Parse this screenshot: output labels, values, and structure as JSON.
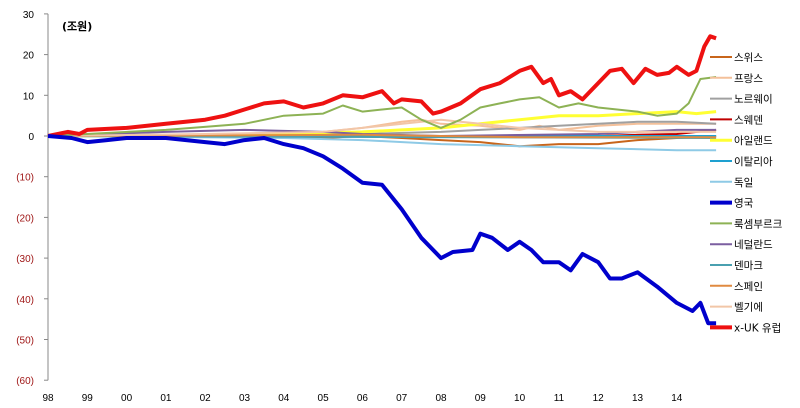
{
  "chart_data": {
    "type": "line",
    "unit_label": "(조원)",
    "ylim": [
      -60,
      30
    ],
    "yticks": [
      {
        "v": 30,
        "label": "30"
      },
      {
        "v": 20,
        "label": "20"
      },
      {
        "v": 10,
        "label": "10"
      },
      {
        "v": 0,
        "label": "0"
      },
      {
        "v": -10,
        "label": "(10)"
      },
      {
        "v": -20,
        "label": "(20)"
      },
      {
        "v": -30,
        "label": "(30)"
      },
      {
        "v": -40,
        "label": "(40)"
      },
      {
        "v": -50,
        "label": "(50)"
      },
      {
        "v": -60,
        "label": "(60)"
      }
    ],
    "xticks": [
      "98",
      "99",
      "00",
      "01",
      "02",
      "03",
      "04",
      "05",
      "06",
      "07",
      "08",
      "09",
      "10",
      "11",
      "12",
      "13",
      "14"
    ],
    "xlim": [
      1998,
      2015
    ],
    "negative_label_color": "#a01818",
    "legend_position": "right",
    "series": [
      {
        "name": "스위스",
        "color": "#c8651b",
        "width": 2,
        "points": [
          [
            1998,
            0
          ],
          [
            2004,
            0
          ],
          [
            2005,
            -0.5
          ],
          [
            2006,
            0
          ],
          [
            2007,
            -0.5
          ],
          [
            2008,
            -1
          ],
          [
            2009,
            -1.5
          ],
          [
            2010,
            -2.5
          ],
          [
            2011,
            -2
          ],
          [
            2012,
            -2
          ],
          [
            2013,
            -1
          ],
          [
            2014,
            -0.5
          ],
          [
            2015,
            0
          ]
        ]
      },
      {
        "name": "프랑스",
        "color": "#f4c09a",
        "width": 2,
        "points": [
          [
            1998,
            0
          ],
          [
            2003,
            0.5
          ],
          [
            2005,
            1
          ],
          [
            2006,
            2
          ],
          [
            2007,
            3.5
          ],
          [
            2007.5,
            4
          ],
          [
            2008,
            3
          ],
          [
            2009,
            2.5
          ],
          [
            2010,
            1.5
          ],
          [
            2010.5,
            2.5
          ],
          [
            2011,
            1.5
          ],
          [
            2012,
            2.5
          ],
          [
            2013,
            3
          ],
          [
            2014,
            3
          ],
          [
            2015,
            3
          ]
        ]
      },
      {
        "name": "노르웨이",
        "color": "#a0a0a0",
        "width": 2,
        "points": [
          [
            1998,
            0
          ],
          [
            2004,
            0
          ],
          [
            2006,
            0.5
          ],
          [
            2008,
            1
          ],
          [
            2009,
            1.5
          ],
          [
            2010,
            2
          ],
          [
            2011,
            2.5
          ],
          [
            2012,
            3
          ],
          [
            2013,
            3.5
          ],
          [
            2014,
            3.5
          ],
          [
            2015,
            3
          ]
        ]
      },
      {
        "name": "스웨덴",
        "color": "#c00000",
        "width": 2,
        "points": [
          [
            1998,
            0
          ],
          [
            2012,
            0
          ],
          [
            2013,
            0.3
          ],
          [
            2014,
            0.5
          ],
          [
            2015,
            1.5
          ]
        ]
      },
      {
        "name": "아일랜드",
        "color": "#ffff33",
        "width": 3,
        "points": [
          [
            1998,
            0
          ],
          [
            2002,
            0
          ],
          [
            2004,
            0.5
          ],
          [
            2006,
            1
          ],
          [
            2007,
            1.5
          ],
          [
            2008,
            2
          ],
          [
            2009,
            3
          ],
          [
            2010,
            4
          ],
          [
            2011,
            5
          ],
          [
            2012,
            5
          ],
          [
            2013,
            5.5
          ],
          [
            2014,
            6
          ],
          [
            2014.5,
            5.5
          ],
          [
            2015,
            6
          ]
        ]
      },
      {
        "name": "이탈리아",
        "color": "#1ea0d0",
        "width": 2,
        "points": [
          [
            1998,
            0
          ],
          [
            2015,
            0
          ]
        ]
      },
      {
        "name": "독일",
        "color": "#8ecae6",
        "width": 2,
        "points": [
          [
            1998,
            0
          ],
          [
            2004,
            -0.5
          ],
          [
            2006,
            -1
          ],
          [
            2008,
            -2
          ],
          [
            2010,
            -2.5
          ],
          [
            2012,
            -3
          ],
          [
            2014,
            -3.5
          ],
          [
            2015,
            -3.5
          ]
        ]
      },
      {
        "name": "네덜란드",
        "color": "#7b5fa0",
        "width": 2,
        "points": [
          [
            1998,
            0
          ],
          [
            2001,
            1
          ],
          [
            2003,
            1.5
          ],
          [
            2005,
            1
          ],
          [
            2006,
            0.5
          ],
          [
            2008,
            0
          ],
          [
            2012,
            0.5
          ],
          [
            2013,
            1
          ],
          [
            2014,
            1.5
          ],
          [
            2015,
            1.5
          ]
        ]
      },
      {
        "name": "덴마크",
        "color": "#4aa0b0",
        "width": 2,
        "points": [
          [
            1998,
            0
          ],
          [
            2015,
            -0.5
          ]
        ]
      },
      {
        "name": "스페인",
        "color": "#e08a40",
        "width": 2,
        "points": [
          [
            1998,
            0
          ],
          [
            2006,
            0.3
          ],
          [
            2010,
            -0.3
          ],
          [
            2015,
            -0.3
          ]
        ]
      },
      {
        "name": "벨기에",
        "color": "#f2c6a8",
        "width": 2,
        "points": [
          [
            1998,
            0
          ],
          [
            2002,
            0.5
          ],
          [
            2005,
            1
          ],
          [
            2006,
            2
          ],
          [
            2008,
            4
          ],
          [
            2009,
            3
          ],
          [
            2010,
            2
          ],
          [
            2012,
            1
          ],
          [
            2014,
            1
          ],
          [
            2015,
            1
          ]
        ]
      },
      {
        "name": "룩셈부르크",
        "color": "#8db255",
        "width": 2,
        "points": [
          [
            1998,
            0
          ],
          [
            2001,
            1.5
          ],
          [
            2003,
            3
          ],
          [
            2004,
            5
          ],
          [
            2005,
            5.5
          ],
          [
            2005.5,
            7.5
          ],
          [
            2006,
            6
          ],
          [
            2007,
            7
          ],
          [
            2007.5,
            4
          ],
          [
            2008,
            2
          ],
          [
            2008.5,
            4
          ],
          [
            2009,
            7
          ],
          [
            2009.5,
            8
          ],
          [
            2010,
            9
          ],
          [
            2010.5,
            9.5
          ],
          [
            2011,
            7
          ],
          [
            2011.5,
            8
          ],
          [
            2012,
            7
          ],
          [
            2013,
            6
          ],
          [
            2013.5,
            5
          ],
          [
            2014,
            5.5
          ],
          [
            2014.3,
            8
          ],
          [
            2014.6,
            14
          ],
          [
            2015,
            14.5
          ]
        ]
      },
      {
        "name": "x-UK 유럽",
        "color": "#ee1111",
        "width": 4,
        "points": [
          [
            1998,
            0
          ],
          [
            1998.5,
            1
          ],
          [
            1998.8,
            0.5
          ],
          [
            1999,
            1.5
          ],
          [
            2000,
            2
          ],
          [
            2001,
            3
          ],
          [
            2002,
            4
          ],
          [
            2002.5,
            5
          ],
          [
            2003,
            6.5
          ],
          [
            2003.5,
            8
          ],
          [
            2004,
            8.5
          ],
          [
            2004.5,
            7
          ],
          [
            2005,
            8
          ],
          [
            2005.5,
            10
          ],
          [
            2006,
            9.5
          ],
          [
            2006.5,
            11
          ],
          [
            2006.8,
            8
          ],
          [
            2007,
            9
          ],
          [
            2007.5,
            8.5
          ],
          [
            2007.8,
            5.5
          ],
          [
            2008,
            6
          ],
          [
            2008.5,
            8
          ],
          [
            2009,
            11.5
          ],
          [
            2009.5,
            13
          ],
          [
            2010,
            16
          ],
          [
            2010.3,
            17
          ],
          [
            2010.6,
            13
          ],
          [
            2010.8,
            14
          ],
          [
            2011,
            10
          ],
          [
            2011.3,
            11
          ],
          [
            2011.6,
            9
          ],
          [
            2012,
            13
          ],
          [
            2012.3,
            16
          ],
          [
            2012.6,
            16.5
          ],
          [
            2012.9,
            13
          ],
          [
            2013.2,
            16.5
          ],
          [
            2013.5,
            15
          ],
          [
            2013.8,
            15.5
          ],
          [
            2014,
            17
          ],
          [
            2014.3,
            15
          ],
          [
            2014.5,
            16
          ],
          [
            2014.7,
            22
          ],
          [
            2014.85,
            24.5
          ],
          [
            2015,
            24
          ]
        ]
      },
      {
        "name": "영국",
        "color": "#0000cc",
        "width": 4,
        "points": [
          [
            1998,
            0
          ],
          [
            1998.6,
            -0.5
          ],
          [
            1999,
            -1.5
          ],
          [
            1999.5,
            -1
          ],
          [
            2000,
            -0.5
          ],
          [
            2001,
            -0.5
          ],
          [
            2002,
            -1.5
          ],
          [
            2002.5,
            -2
          ],
          [
            2003,
            -1
          ],
          [
            2003.5,
            -0.5
          ],
          [
            2004,
            -2
          ],
          [
            2004.5,
            -3
          ],
          [
            2005,
            -5
          ],
          [
            2005.5,
            -8
          ],
          [
            2006,
            -11.5
          ],
          [
            2006.5,
            -12
          ],
          [
            2007,
            -18
          ],
          [
            2007.5,
            -25
          ],
          [
            2008,
            -30
          ],
          [
            2008.3,
            -28.5
          ],
          [
            2008.8,
            -28
          ],
          [
            2009,
            -24
          ],
          [
            2009.3,
            -25
          ],
          [
            2009.7,
            -28
          ],
          [
            2010,
            -26
          ],
          [
            2010.3,
            -28
          ],
          [
            2010.6,
            -31
          ],
          [
            2011,
            -31
          ],
          [
            2011.3,
            -33
          ],
          [
            2011.6,
            -29
          ],
          [
            2012,
            -31
          ],
          [
            2012.3,
            -35
          ],
          [
            2012.6,
            -35
          ],
          [
            2013,
            -33.5
          ],
          [
            2013.5,
            -37
          ],
          [
            2014,
            -41
          ],
          [
            2014.4,
            -43
          ],
          [
            2014.6,
            -41
          ],
          [
            2014.8,
            -46
          ],
          [
            2015,
            -46
          ]
        ]
      }
    ],
    "legend_order": [
      "스위스",
      "프랑스",
      "노르웨이",
      "스웨덴",
      "아일랜드",
      "이탈리아",
      "독일",
      "영국",
      "룩셈부르크",
      "네덜란드",
      "덴마크",
      "스페인",
      "벨기에",
      "x-UK 유럽"
    ]
  }
}
